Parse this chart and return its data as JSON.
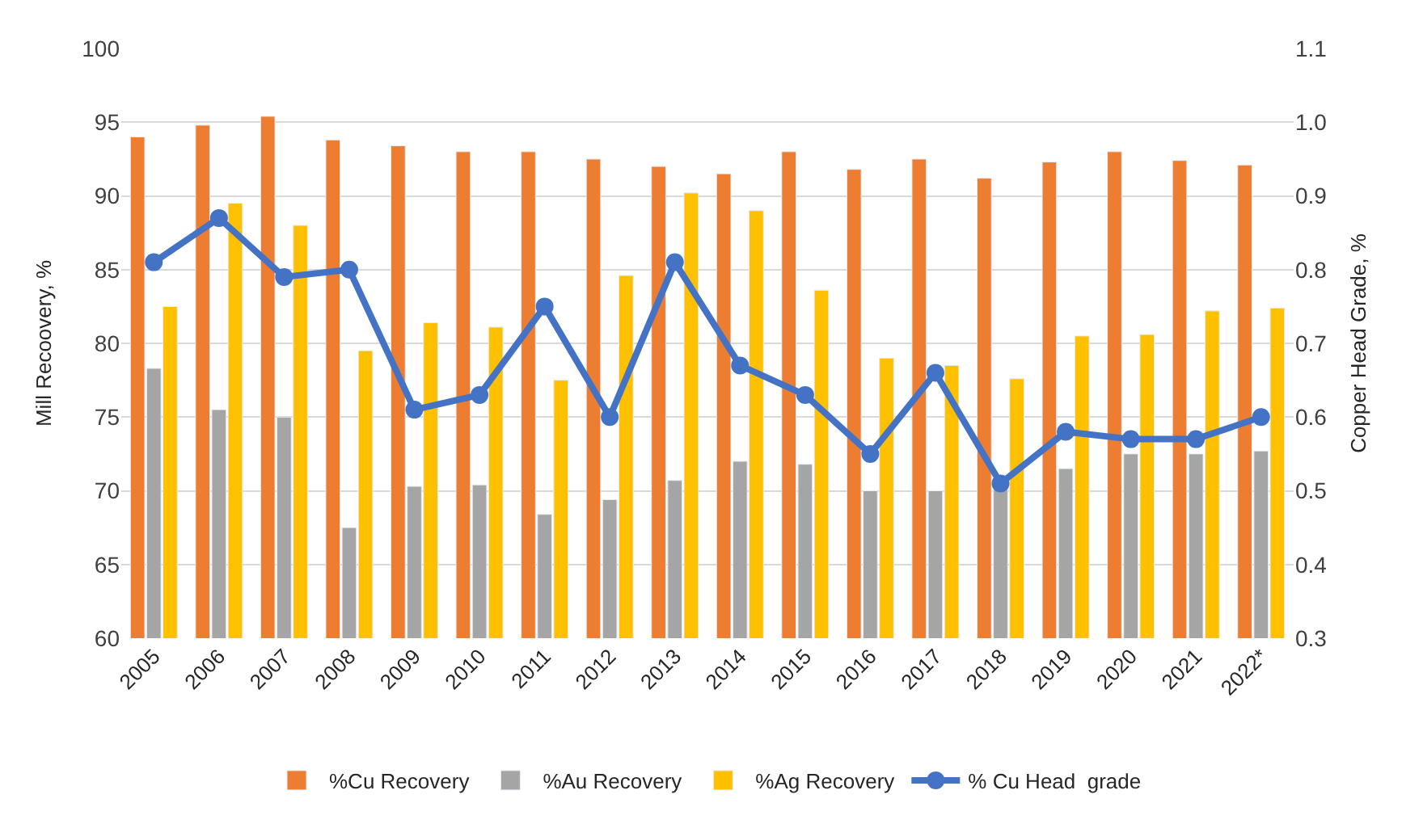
{
  "chart_data": {
    "type": "bar",
    "categories": [
      "2005",
      "2006",
      "2007",
      "2008",
      "2009",
      "2010",
      "2011",
      "2012",
      "2013",
      "2014",
      "2015",
      "2016",
      "2017",
      "2018",
      "2019",
      "2020",
      "2021",
      "2022*"
    ],
    "series": [
      {
        "name": "%Cu Recovery",
        "color": "#ed7d31",
        "values": [
          94,
          94.8,
          95.4,
          93.8,
          93.4,
          93,
          93,
          92.5,
          92,
          91.5,
          93,
          91.8,
          92.5,
          91.2,
          92.3,
          93,
          92.4,
          92.1
        ]
      },
      {
        "name": "%Au Recovery",
        "color": "#a5a5a5",
        "values": [
          78.3,
          75.5,
          75,
          67.5,
          70.3,
          70.4,
          68.4,
          69.4,
          70.7,
          72,
          71.8,
          70,
          70,
          70.3,
          71.5,
          72.5,
          72.5,
          72.7
        ]
      },
      {
        "name": "%Ag Recovery",
        "color": "#ffc000",
        "values": [
          82.5,
          89.5,
          88,
          79.5,
          81.4,
          81.1,
          77.5,
          84.6,
          90.2,
          89,
          83.6,
          79,
          78.5,
          77.6,
          80.5,
          80.6,
          82.2,
          82.4
        ]
      },
      {
        "name": "% Cu Head  grade",
        "color": "#4472c4",
        "type": "line",
        "axis": "y2",
        "marker": "circle",
        "values": [
          0.81,
          0.87,
          0.79,
          0.8,
          0.61,
          0.63,
          0.75,
          0.6,
          0.81,
          0.67,
          0.63,
          0.55,
          0.66,
          0.51,
          0.58,
          0.57,
          0.57,
          0.6
        ]
      }
    ],
    "ylabel": "Mill Recoovery, %",
    "y2label": "Copper Head Grade, %",
    "ylim": [
      60,
      100
    ],
    "yticks": [
      60,
      65,
      70,
      75,
      80,
      85,
      90,
      95,
      100
    ],
    "y2lim": [
      0.3,
      1.1
    ],
    "y2ticks": [
      {
        "value": 0.3,
        "label": "0.3"
      },
      {
        "value": 0.4,
        "label": "0.4"
      },
      {
        "value": 0.5,
        "label": "0.5"
      },
      {
        "value": 0.6,
        "label": "0.6"
      },
      {
        "value": 0.7,
        "label": "0.7"
      },
      {
        "value": 0.8,
        "label": "0.8"
      },
      {
        "value": 0.9,
        "label": "0.9"
      },
      {
        "value": 1.0,
        "label": "1.0"
      },
      {
        "value": 1.1,
        "label": "1.1"
      }
    ],
    "grid": "y",
    "legend": "bottom"
  }
}
